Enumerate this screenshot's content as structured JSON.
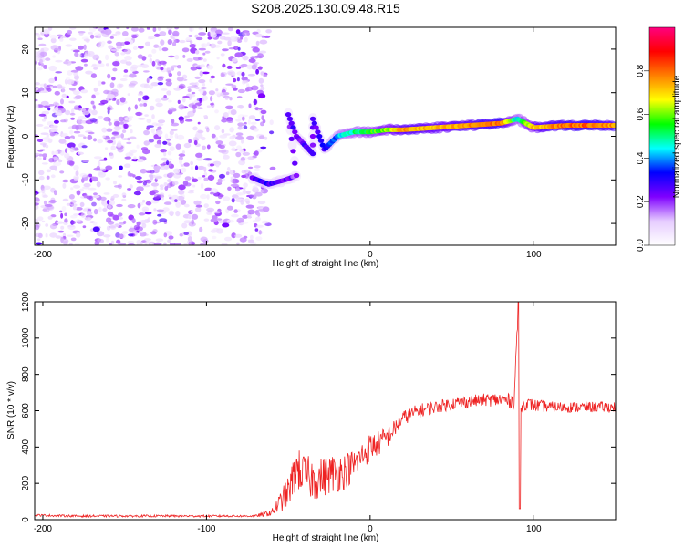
{
  "title": "S208.2025.130.09.48.R15",
  "chart_data": [
    {
      "type": "heatmap",
      "xlabel": "Height of straight line (km)",
      "ylabel": "Frequency (Hz)",
      "xlim": [
        -205,
        150
      ],
      "ylim": [
        -25,
        25
      ],
      "xticks": [
        -200,
        -100,
        0,
        100
      ],
      "yticks": [
        -20,
        -10,
        0,
        10,
        20
      ],
      "colorbar": {
        "label": "Normalized spectral amplitude",
        "range": [
          0,
          1
        ],
        "ticks": [
          "0.0",
          "0.2",
          "0.4",
          "0.6",
          "0.8"
        ],
        "tick_values": [
          0.0,
          0.2,
          0.4,
          0.6,
          0.8
        ],
        "colors": [
          "#ffffff",
          "#e6ccff",
          "#7f00ff",
          "#0000ff",
          "#00ffff",
          "#00ff00",
          "#ffff00",
          "#ff8000",
          "#ff0000",
          "#ff0080"
        ]
      },
      "features": {
        "noise_region_x": [
          -205,
          -65
        ],
        "noise_region_amplitude": 0.15,
        "track": [
          {
            "x": -72,
            "y": -9.5,
            "a": 0.25
          },
          {
            "x": -62,
            "y": -11,
            "a": 0.3
          },
          {
            "x": -52,
            "y": -10,
            "a": 0.25
          },
          {
            "x": -45,
            "y": -9,
            "a": 0.2
          },
          {
            "x": -50,
            "y": 5,
            "a": 0.25
          },
          {
            "x": -45,
            "y": 0,
            "a": 0.25
          },
          {
            "x": -35,
            "y": -4,
            "a": 0.25
          },
          {
            "x": -35,
            "y": 4,
            "a": 0.25
          },
          {
            "x": -28,
            "y": -3,
            "a": 0.3
          },
          {
            "x": -20,
            "y": 0,
            "a": 0.4
          },
          {
            "x": -10,
            "y": 1,
            "a": 0.5
          },
          {
            "x": 0,
            "y": 1,
            "a": 0.55
          },
          {
            "x": 10,
            "y": 1.5,
            "a": 0.6
          },
          {
            "x": 20,
            "y": 1.5,
            "a": 0.75
          },
          {
            "x": 40,
            "y": 2,
            "a": 0.7
          },
          {
            "x": 60,
            "y": 2.5,
            "a": 0.75
          },
          {
            "x": 80,
            "y": 3,
            "a": 0.8
          },
          {
            "x": 90,
            "y": 4,
            "a": 0.45
          },
          {
            "x": 100,
            "y": 2,
            "a": 0.7
          },
          {
            "x": 120,
            "y": 2.5,
            "a": 0.8
          },
          {
            "x": 140,
            "y": 2.5,
            "a": 0.8
          },
          {
            "x": 150,
            "y": 2.5,
            "a": 0.75
          }
        ]
      }
    },
    {
      "type": "line",
      "xlabel": "Height of straight line (km)",
      "ylabel": "SNR (10 * v/v)",
      "xlim": [
        -205,
        150
      ],
      "ylim": [
        0,
        1200
      ],
      "xticks": [
        -200,
        -100,
        0,
        100
      ],
      "yticks": [
        0,
        200,
        400,
        600,
        800,
        1000,
        1200
      ],
      "series": [
        {
          "color": "#ee2222",
          "x": [
            -205,
            -180,
            -160,
            -140,
            -120,
            -100,
            -80,
            -70,
            -60,
            -50,
            -45,
            -40,
            -35,
            -30,
            -25,
            -20,
            -15,
            -10,
            -5,
            0,
            5,
            10,
            15,
            20,
            30,
            40,
            50,
            60,
            70,
            80,
            88,
            90,
            91,
            92,
            95,
            100,
            110,
            120,
            130,
            140,
            150
          ],
          "y": [
            25,
            20,
            20,
            20,
            20,
            20,
            20,
            20,
            40,
            150,
            280,
            250,
            220,
            230,
            250,
            260,
            270,
            300,
            350,
            400,
            420,
            450,
            500,
            560,
            600,
            620,
            640,
            650,
            660,
            660,
            650,
            1100,
            60,
            620,
            640,
            630,
            620,
            620,
            620,
            620,
            620
          ],
          "noise_amplitude": [
            6,
            6,
            6,
            6,
            6,
            6,
            6,
            6,
            20,
            90,
            120,
            110,
            120,
            110,
            110,
            110,
            100,
            90,
            80,
            80,
            70,
            60,
            50,
            40,
            40,
            35,
            35,
            35,
            35,
            40,
            40,
            0,
            0,
            40,
            35,
            35,
            30,
            30,
            30,
            30,
            30
          ]
        }
      ]
    }
  ]
}
